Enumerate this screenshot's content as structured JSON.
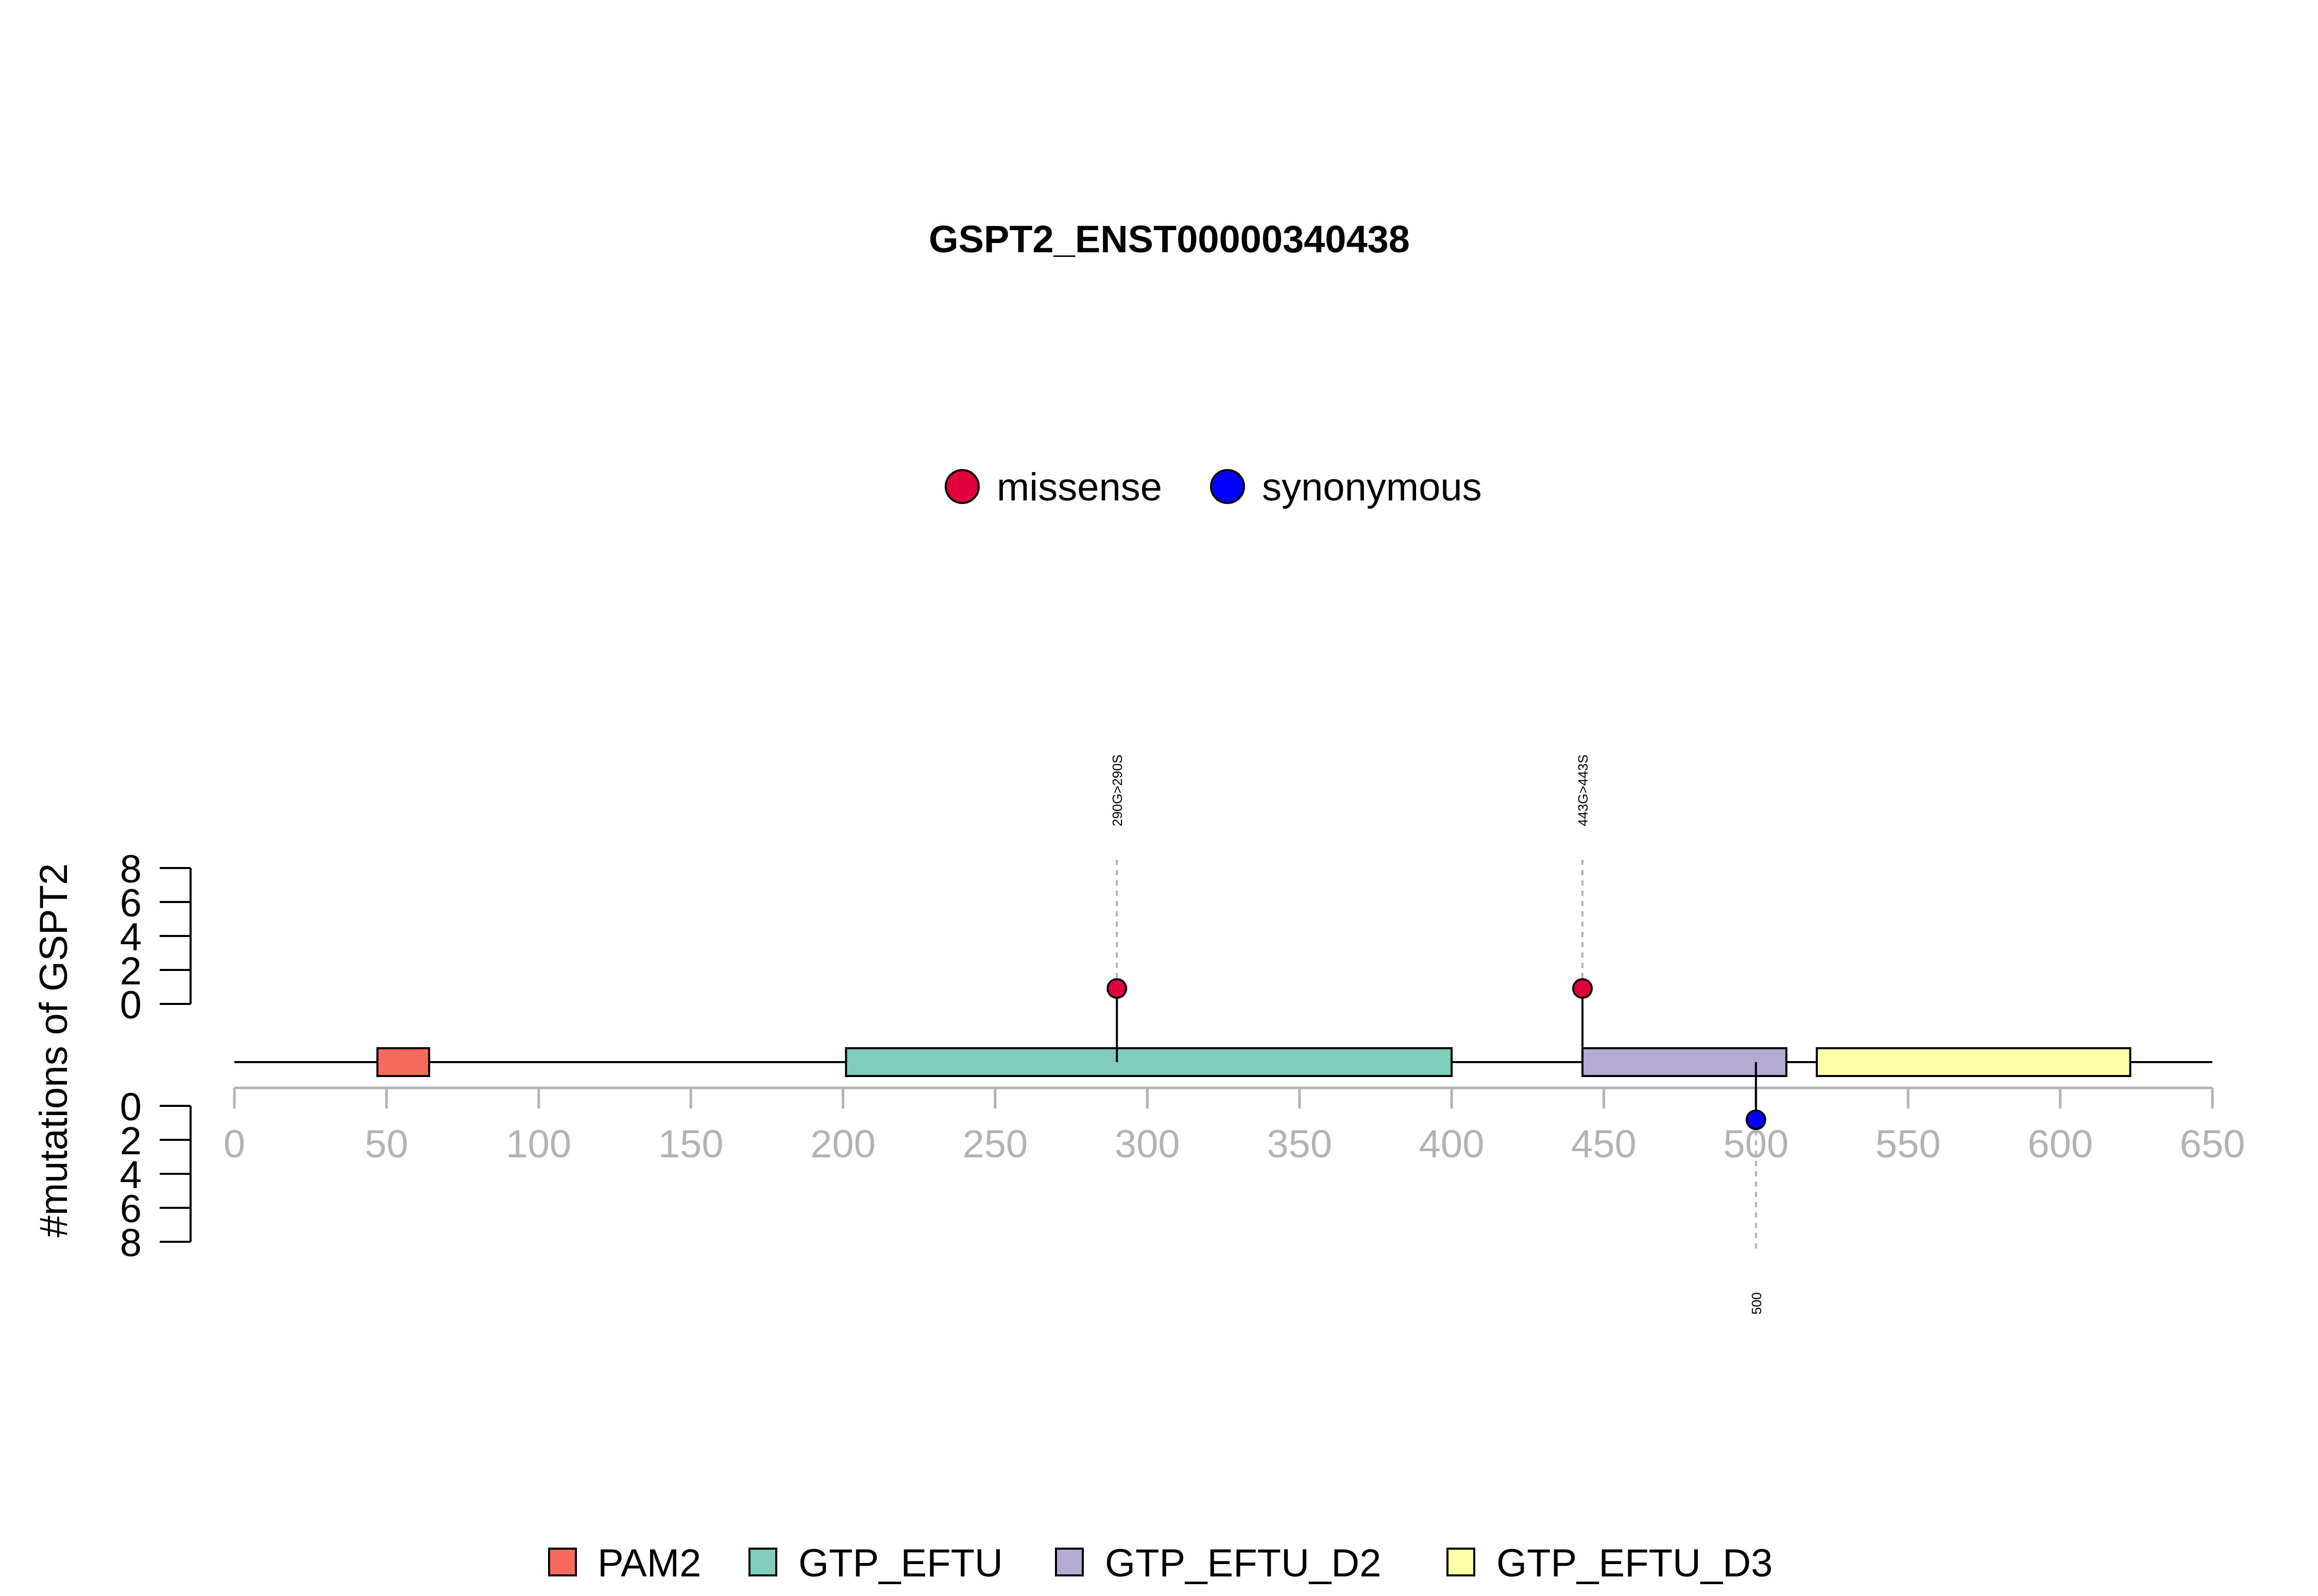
{
  "chart_data": {
    "type": "lollipop",
    "title": "GSPT2_ENST00000340438",
    "ylabel": "#mutations of GSPT2",
    "xlim": [
      0,
      650
    ],
    "x_ticks": [
      0,
      50,
      100,
      150,
      200,
      250,
      300,
      350,
      400,
      450,
      500,
      550,
      600,
      650
    ],
    "y_ticks_top": [
      0,
      2,
      4,
      6,
      8
    ],
    "y_ticks_bottom": [
      0,
      2,
      4,
      6,
      8
    ],
    "mutation_legend": [
      {
        "label": "missense",
        "color": "#E0003C"
      },
      {
        "label": "synonymous",
        "color": "#0000FF"
      }
    ],
    "domains": [
      {
        "name": "PAM2",
        "start": 47,
        "end": 64,
        "color": "#F8695E"
      },
      {
        "name": "GTP_EFTU",
        "start": 201,
        "end": 400,
        "color": "#7FCDBB"
      },
      {
        "name": "GTP_EFTU_D2",
        "start": 443,
        "end": 510,
        "color": "#B3ABD2"
      },
      {
        "name": "GTP_EFTU_D3",
        "start": 520,
        "end": 623,
        "color": "#FFFFA8"
      }
    ],
    "domain_legend": [
      "PAM2",
      "GTP_EFTU",
      "GTP_EFTU_D2",
      "GTP_EFTU_D3"
    ],
    "mutations": [
      {
        "position": 290,
        "label": "290G>290S",
        "type": "missense",
        "count": 1,
        "side": "top"
      },
      {
        "position": 443,
        "label": "443G>443S",
        "type": "missense",
        "count": 1,
        "side": "top"
      },
      {
        "position": 500,
        "label": "500",
        "type": "synonymous",
        "count": 1,
        "side": "bottom"
      }
    ]
  }
}
